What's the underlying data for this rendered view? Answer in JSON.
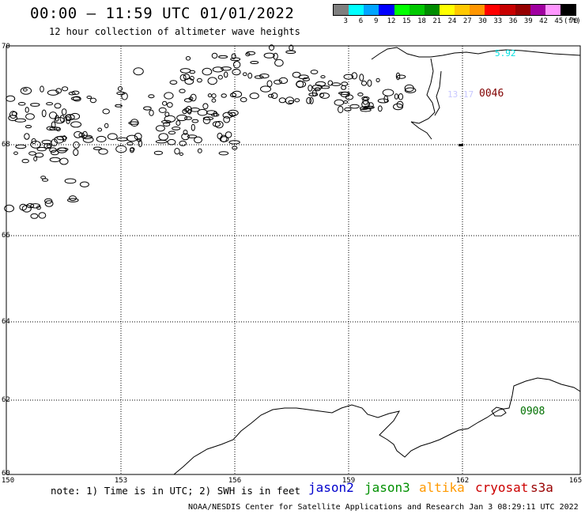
{
  "title": "00:00 – 11:59 UTC 01/01/2022",
  "subtitle": "12 hour collection of altimeter wave heights",
  "legend": {
    "colors": [
      "#7f7f7f",
      "#00ffff",
      "#00a5ff",
      "#0000ff",
      "#00ff00",
      "#00c800",
      "#008c00",
      "#ffff00",
      "#ffc800",
      "#ff9600",
      "#ff0000",
      "#c80000",
      "#960000",
      "#a000a0",
      "#ff96ff",
      "#000000"
    ],
    "labels": [
      "3",
      "6",
      "9",
      "12",
      "15",
      "18",
      "21",
      "24",
      "27",
      "30",
      "33",
      "36",
      "39",
      "42",
      "45",
      "70",
      "(ft)"
    ]
  },
  "map": {
    "lat_labels": [
      "70",
      "68",
      "66",
      "64",
      "62",
      "60"
    ],
    "lon_labels": [
      "150",
      "153",
      "156",
      "159",
      "162",
      "165"
    ],
    "points": [
      {
        "text": "5.92",
        "color": "#00e0e0"
      },
      {
        "text": "13.17",
        "color": "#c8c8ff"
      },
      {
        "text": "0046",
        "color": "#800000"
      },
      {
        "text": "0908",
        "color": "#007000"
      }
    ]
  },
  "note": "note: 1) Time is in UTC; 2) SWH is in feet",
  "satellites": [
    {
      "name": "jason2",
      "color": "#0000cc"
    },
    {
      "name": "jason3",
      "color": "#009000"
    },
    {
      "name": "altika",
      "color": "#ff9900"
    },
    {
      "name": "cryosat",
      "color": "#cc0000"
    },
    {
      "name": "s3a",
      "color": "#990000"
    }
  ],
  "footer": "NOAA/NESDIS Center for Satellite Applications and Research   Jan  3 08:29:11 UTC 2022"
}
